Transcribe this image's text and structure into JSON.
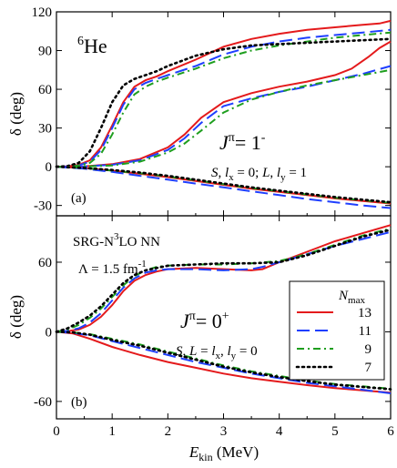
{
  "chart_data": [
    {
      "type": "line",
      "panel_label": "(a)",
      "ylabel": "δ (deg)",
      "xlim": [
        0,
        6
      ],
      "ylim": [
        -38,
        120
      ],
      "yticks": [
        -30,
        0,
        30,
        60,
        90,
        120
      ],
      "annotations": {
        "nucleus_mass": "6",
        "nucleus_symbol": "He",
        "jpi_prefix": "J",
        "jpi_sup": "π",
        "jpi_value": "= 1",
        "jpi_parity": "-",
        "channel": "S, l_x = 0; L, l_y = 1"
      },
      "series": [
        {
          "name": "13",
          "color": "#e41a1c",
          "dash": "solid",
          "x": [
            0,
            0.2,
            0.4,
            0.6,
            0.8,
            1.0,
            1.2,
            1.4,
            1.6,
            1.8,
            2.0,
            2.5,
            3.0,
            3.5,
            4.0,
            4.5,
            5.0,
            5.5,
            5.8,
            6.0
          ],
          "y": [
            0,
            0.3,
            1.5,
            5,
            15,
            32,
            50,
            62,
            67,
            70,
            74,
            83,
            93,
            99,
            103,
            106,
            108,
            110,
            111,
            113
          ]
        },
        {
          "name": "11",
          "color": "#1f3fff",
          "dash": "long",
          "x": [
            0,
            0.2,
            0.4,
            0.6,
            0.8,
            1.0,
            1.2,
            1.4,
            1.6,
            1.8,
            2.0,
            2.5,
            3.0,
            3.5,
            4.0,
            4.5,
            5.0,
            5.5,
            6.0
          ],
          "y": [
            0,
            0.2,
            1,
            4,
            13,
            30,
            48,
            60,
            65,
            68,
            71,
            78,
            87,
            93,
            97,
            100,
            102,
            104,
            106
          ]
        },
        {
          "name": "9",
          "color": "#1e9e1e",
          "dash": "dashdot",
          "x": [
            0,
            0.2,
            0.4,
            0.6,
            0.8,
            1.0,
            1.2,
            1.4,
            1.6,
            1.8,
            2.0,
            2.5,
            3.0,
            3.5,
            4.0,
            4.5,
            5.0,
            5.5,
            6.0
          ],
          "y": [
            0,
            0.2,
            1,
            3,
            10,
            25,
            42,
            56,
            62,
            66,
            69,
            76,
            84,
            90,
            94,
            97,
            100,
            102,
            104
          ]
        },
        {
          "name": "7",
          "color": "#000000",
          "dash": "dotted",
          "x": [
            0,
            0.2,
            0.4,
            0.6,
            0.8,
            1.0,
            1.2,
            1.4,
            1.6,
            1.8,
            2.0,
            2.5,
            3.0,
            3.5,
            4.0,
            4.5,
            5.0,
            5.5,
            6.0
          ],
          "y": [
            0,
            0.5,
            3,
            12,
            30,
            50,
            63,
            68,
            71,
            74,
            78,
            86,
            91,
            94,
            95,
            96,
            97,
            98,
            99
          ]
        },
        {
          "name": "13",
          "color": "#e41a1c",
          "dash": "solid",
          "x": [
            0,
            0.5,
            1.0,
            1.5,
            2.0,
            2.3,
            2.6,
            3.0,
            3.5,
            4.0,
            4.5,
            5.0,
            5.3,
            5.6,
            5.8,
            6.0
          ],
          "y": [
            0,
            0.3,
            2,
            6,
            15,
            25,
            38,
            50,
            57,
            62,
            66,
            71,
            76,
            85,
            92,
            97
          ]
        },
        {
          "name": "11",
          "color": "#1f3fff",
          "dash": "long",
          "x": [
            0,
            0.5,
            1.0,
            1.5,
            2.0,
            2.3,
            2.6,
            3.0,
            3.5,
            4.0,
            4.5,
            5.0,
            5.5,
            6.0
          ],
          "y": [
            0,
            0.2,
            1.5,
            5,
            13,
            22,
            34,
            47,
            53,
            58,
            62,
            67,
            72,
            78
          ]
        },
        {
          "name": "9",
          "color": "#1e9e1e",
          "dash": "dashdot",
          "x": [
            0,
            0.5,
            1.0,
            1.5,
            2.0,
            2.3,
            2.6,
            3.0,
            3.5,
            4.0,
            4.5,
            5.0,
            5.5,
            6.0
          ],
          "y": [
            0,
            0.2,
            1,
            4,
            11,
            18,
            28,
            42,
            52,
            58,
            63,
            67,
            71,
            75
          ]
        },
        {
          "name": "13",
          "color": "#e41a1c",
          "dash": "solid",
          "x": [
            0,
            0.5,
            1.0,
            1.5,
            2.0,
            2.5,
            3.0,
            3.5,
            4.0,
            4.5,
            5.0,
            5.5,
            6.0
          ],
          "y": [
            0,
            -1,
            -3,
            -5.5,
            -8,
            -11,
            -14,
            -17,
            -19.5,
            -22,
            -24.5,
            -26.5,
            -28.5
          ]
        },
        {
          "name": "11",
          "color": "#1f3fff",
          "dash": "long",
          "x": [
            0,
            0.5,
            1.0,
            1.5,
            2.0,
            2.5,
            3.0,
            3.5,
            4.0,
            4.5,
            5.0,
            5.5,
            6.0
          ],
          "y": [
            0,
            -1.5,
            -4,
            -7,
            -10,
            -13,
            -16,
            -19,
            -22,
            -25,
            -27.5,
            -30,
            -32
          ]
        },
        {
          "name": "9",
          "color": "#1e9e1e",
          "dash": "dashdot",
          "x": [
            0,
            0.5,
            1.0,
            1.5,
            2.0,
            2.5,
            3.0,
            3.5,
            4.0,
            4.5,
            5.0,
            5.5,
            6.0
          ],
          "y": [
            0,
            -1,
            -3,
            -5,
            -7.5,
            -10.5,
            -13.5,
            -16.5,
            -19,
            -21.5,
            -24,
            -26,
            -28
          ]
        },
        {
          "name": "7",
          "color": "#000000",
          "dash": "dotted",
          "x": [
            0,
            0.5,
            1.0,
            1.5,
            2.0,
            2.5,
            3.0,
            3.5,
            4.0,
            4.5,
            5.0,
            5.5,
            6.0
          ],
          "y": [
            0,
            -1,
            -2.5,
            -4.5,
            -7,
            -10,
            -13,
            -16,
            -18.5,
            -21,
            -23.5,
            -25.5,
            -27.5
          ]
        }
      ]
    },
    {
      "type": "line",
      "panel_label": "(b)",
      "ylabel": "δ (deg)",
      "xlabel_main": "E",
      "xlabel_sub": "kin",
      "xlabel_unit": " (MeV)",
      "xlim": [
        0,
        6
      ],
      "ylim": [
        -75,
        100
      ],
      "xticks": [
        0,
        1,
        2,
        3,
        4,
        5,
        6
      ],
      "yticks": [
        -60,
        0,
        60
      ],
      "annotations": {
        "interaction_prefix": "SRG-N",
        "interaction_sup": "3",
        "interaction_suffix": "LO NN",
        "lambda_text": "Λ = 1.5 fm",
        "lambda_sup": "-1",
        "jpi_prefix": "J",
        "jpi_sup": "π",
        "jpi_value": "= 0",
        "jpi_parity": "+",
        "channel": "S, L = l_x, l_y = 0"
      },
      "legend": {
        "placement": "center-right",
        "title_main": "N",
        "title_sub": "max",
        "entries": [
          {
            "label": "13",
            "color": "#e41a1c",
            "dash": "solid"
          },
          {
            "label": "11",
            "color": "#1f3fff",
            "dash": "long"
          },
          {
            "label": "9",
            "color": "#1e9e1e",
            "dash": "dashdot"
          },
          {
            "label": "7",
            "color": "#000000",
            "dash": "dotted"
          }
        ]
      },
      "series": [
        {
          "name": "13",
          "color": "#e41a1c",
          "dash": "solid",
          "x": [
            0,
            0.2,
            0.4,
            0.6,
            0.8,
            1.0,
            1.2,
            1.4,
            1.6,
            1.8,
            2.0,
            2.5,
            3.0,
            3.5,
            3.7,
            4.0,
            4.5,
            5.0,
            5.5,
            6.0
          ],
          "y": [
            0,
            0.5,
            2,
            6,
            13,
            23,
            35,
            44,
            49,
            52,
            54,
            55,
            54,
            53,
            54,
            60,
            69,
            78,
            85,
            92
          ]
        },
        {
          "name": "11",
          "color": "#1f3fff",
          "dash": "long",
          "x": [
            0,
            0.2,
            0.4,
            0.6,
            0.8,
            1.0,
            1.2,
            1.4,
            1.6,
            1.8,
            2.0,
            2.5,
            3.0,
            3.5,
            3.7,
            4.0,
            4.5,
            5.0,
            5.5,
            6.0
          ],
          "y": [
            0,
            0.8,
            3,
            8,
            16,
            27,
            38,
            46,
            51,
            53,
            54,
            54,
            53,
            54,
            56,
            60,
            67,
            74,
            80,
            86
          ]
        },
        {
          "name": "9",
          "color": "#1e9e1e",
          "dash": "dashdot",
          "x": [
            0,
            0.2,
            0.4,
            0.6,
            0.8,
            1.0,
            1.2,
            1.4,
            1.6,
            1.8,
            2.0,
            2.5,
            3.0,
            3.5,
            4.0,
            4.5,
            5.0,
            5.5,
            6.0
          ],
          "y": [
            0,
            2,
            6,
            12,
            20,
            30,
            40,
            48,
            53,
            56,
            57,
            58,
            58,
            59,
            61,
            67,
            75,
            83,
            89
          ]
        },
        {
          "name": "7",
          "color": "#000000",
          "dash": "dotted",
          "x": [
            0,
            0.2,
            0.4,
            0.6,
            0.8,
            1.0,
            1.2,
            1.4,
            1.6,
            1.8,
            2.0,
            2.5,
            3.0,
            3.5,
            4.0,
            4.5,
            5.0,
            5.5,
            6.0
          ],
          "y": [
            0,
            3,
            8,
            14,
            22,
            32,
            42,
            49,
            53,
            55,
            57,
            58,
            59,
            59,
            60,
            66,
            74,
            82,
            88
          ]
        },
        {
          "name": "13",
          "color": "#e41a1c",
          "dash": "solid",
          "x": [
            0,
            0.3,
            0.6,
            1.0,
            1.5,
            2.0,
            2.5,
            3.0,
            3.5,
            4.0,
            4.5,
            5.0,
            5.5,
            6.0
          ],
          "y": [
            0,
            -1.5,
            -6,
            -13,
            -20,
            -26,
            -31,
            -36,
            -40,
            -43,
            -46,
            -48.5,
            -50.5,
            -52.5
          ]
        },
        {
          "name": "11",
          "color": "#1f3fff",
          "dash": "long",
          "x": [
            0,
            0.3,
            0.6,
            1.0,
            1.5,
            2.0,
            2.5,
            3.0,
            3.5,
            4.0,
            4.5,
            5.0,
            5.5,
            6.0
          ],
          "y": [
            0,
            -1,
            -3,
            -8,
            -14,
            -20,
            -26,
            -31,
            -36,
            -40,
            -44,
            -47,
            -50,
            -53
          ]
        },
        {
          "name": "9",
          "color": "#1e9e1e",
          "dash": "dashdot",
          "x": [
            0,
            0.3,
            0.6,
            1.0,
            1.5,
            2.0,
            2.5,
            3.0,
            3.5,
            4.0,
            4.5,
            5.0,
            5.5,
            6.0
          ],
          "y": [
            0,
            -0.5,
            -2,
            -6,
            -11,
            -17,
            -23,
            -29,
            -34,
            -38,
            -42,
            -45,
            -47,
            -49
          ]
        },
        {
          "name": "7",
          "color": "#000000",
          "dash": "dotted",
          "x": [
            0,
            0.3,
            0.6,
            1.0,
            1.5,
            2.0,
            2.5,
            3.0,
            3.5,
            4.0,
            4.5,
            5.0,
            5.5,
            6.0
          ],
          "y": [
            0,
            -0.5,
            -2.5,
            -7,
            -12,
            -18,
            -24,
            -30,
            -35,
            -39,
            -42.5,
            -45.5,
            -47.5,
            -49.5
          ]
        }
      ]
    }
  ]
}
